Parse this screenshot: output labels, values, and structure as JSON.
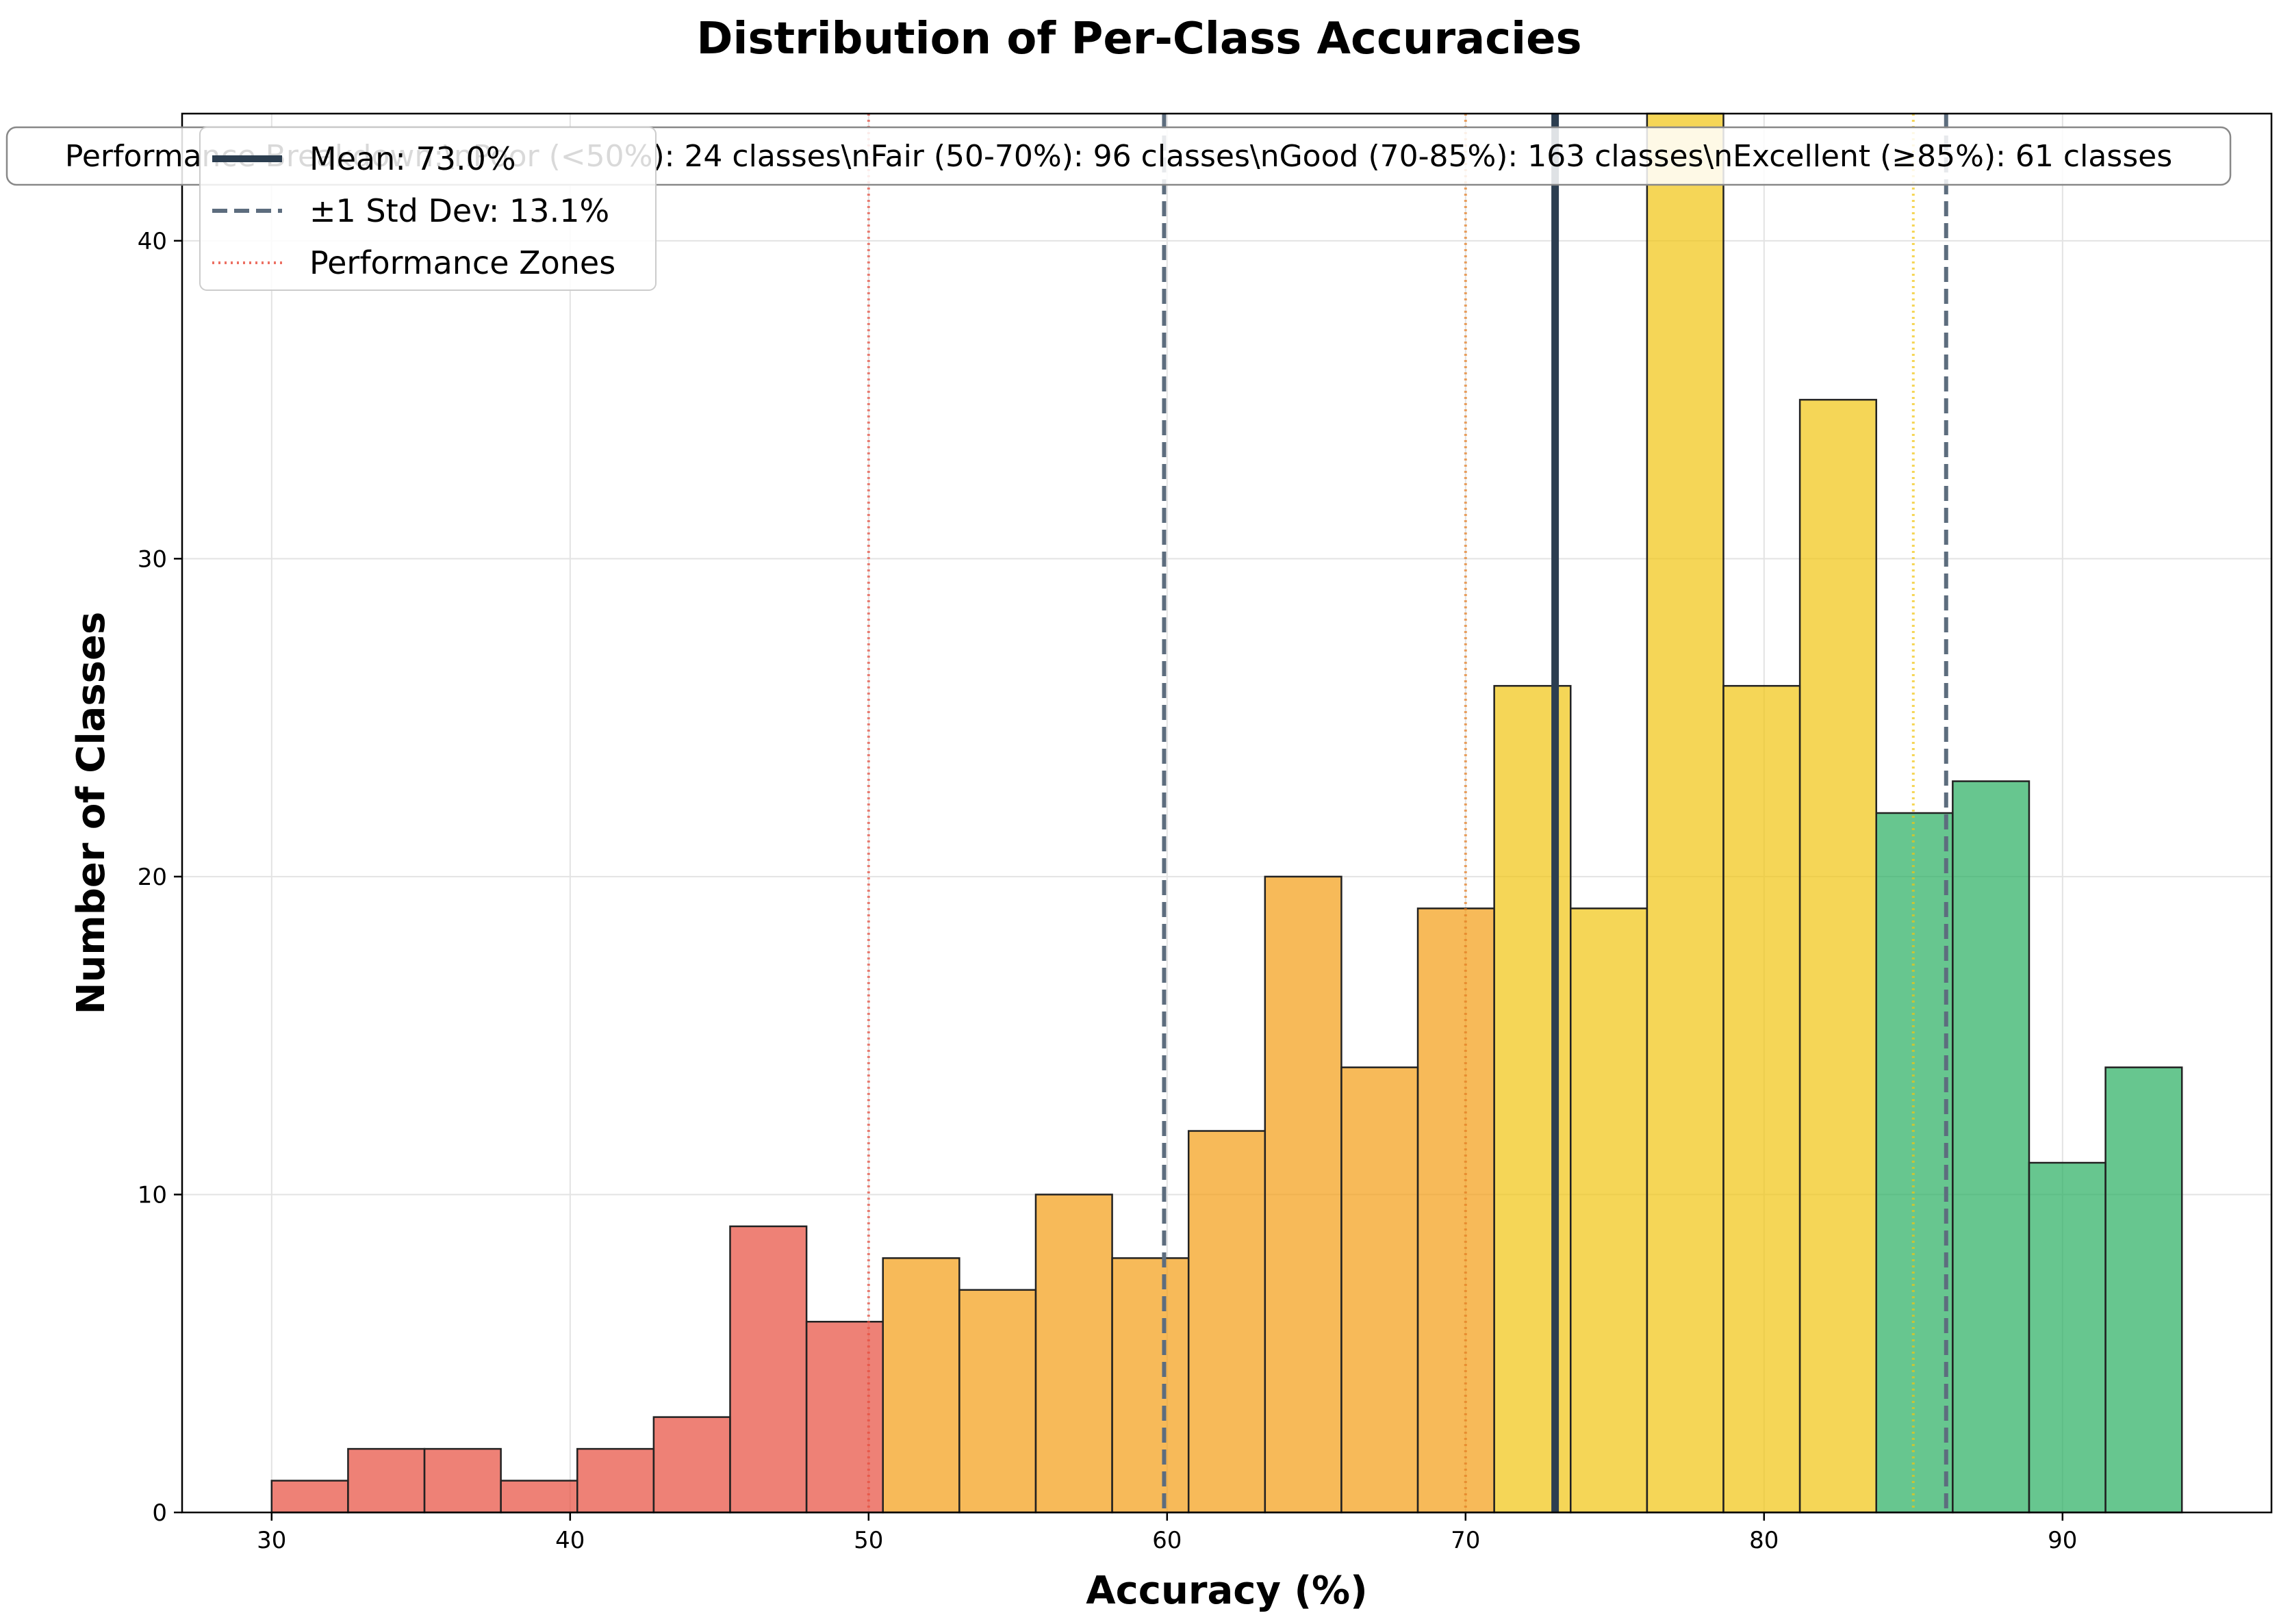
{
  "chart_data": {
    "type": "bar",
    "title": "Distribution of Per-Class Accuracies",
    "xlabel": "Accuracy (%)",
    "ylabel": "Number of Classes",
    "xlim": [
      27,
      97
    ],
    "ylim": [
      0,
      44
    ],
    "x_ticks": [
      30,
      40,
      50,
      60,
      70,
      80,
      90
    ],
    "y_ticks": [
      0,
      10,
      20,
      30,
      40
    ],
    "grid": true,
    "bin_width": 2.56,
    "bins": [
      {
        "start": 30.0,
        "count": 1,
        "zone": "poor"
      },
      {
        "start": 32.56,
        "count": 2,
        "zone": "poor"
      },
      {
        "start": 35.12,
        "count": 2,
        "zone": "poor"
      },
      {
        "start": 37.68,
        "count": 1,
        "zone": "poor"
      },
      {
        "start": 40.24,
        "count": 2,
        "zone": "poor"
      },
      {
        "start": 42.8,
        "count": 3,
        "zone": "poor"
      },
      {
        "start": 45.36,
        "count": 9,
        "zone": "poor"
      },
      {
        "start": 47.92,
        "count": 6,
        "zone": "poor"
      },
      {
        "start": 50.48,
        "count": 8,
        "zone": "fair"
      },
      {
        "start": 53.04,
        "count": 7,
        "zone": "fair"
      },
      {
        "start": 55.6,
        "count": 10,
        "zone": "fair"
      },
      {
        "start": 58.16,
        "count": 8,
        "zone": "fair"
      },
      {
        "start": 60.72,
        "count": 12,
        "zone": "fair"
      },
      {
        "start": 63.28,
        "count": 20,
        "zone": "fair"
      },
      {
        "start": 65.84,
        "count": 14,
        "zone": "fair"
      },
      {
        "start": 68.4,
        "count": 19,
        "zone": "fair"
      },
      {
        "start": 70.96,
        "count": 26,
        "zone": "good"
      },
      {
        "start": 73.52,
        "count": 19,
        "zone": "good"
      },
      {
        "start": 76.08,
        "count": 44,
        "zone": "good"
      },
      {
        "start": 78.64,
        "count": 26,
        "zone": "good"
      },
      {
        "start": 81.2,
        "count": 35,
        "zone": "good"
      },
      {
        "start": 83.76,
        "count": 22,
        "zone": "excellent"
      },
      {
        "start": 86.32,
        "count": 23,
        "zone": "excellent"
      },
      {
        "start": 88.88,
        "count": 11,
        "zone": "excellent"
      },
      {
        "start": 91.44,
        "count": 14,
        "zone": "excellent"
      }
    ],
    "zone_colors": {
      "poor": "#e74c3c",
      "fair": "#f39c12",
      "good": "#f1c40f",
      "excellent": "#27ae60"
    },
    "mean": 73.0,
    "std": 13.1,
    "std_lines": [
      59.9,
      86.1
    ],
    "zone_lines": [
      {
        "x": 50,
        "color": "#e74c3c"
      },
      {
        "x": 70,
        "color": "#e67e22"
      },
      {
        "x": 85,
        "color": "#f1c40f"
      }
    ],
    "legend": {
      "position": "upper-left",
      "entries": [
        {
          "label": "Mean: 73.0%",
          "style": "solid",
          "color": "#2c3e50"
        },
        {
          "label": "±1 Std Dev: 13.1%",
          "style": "dashed",
          "color": "#5d6d7e"
        },
        {
          "label": "Performance Zones",
          "style": "dotted",
          "color": "#e74c3c"
        }
      ]
    },
    "breakdown_text": "Performance Breakdown:\\nPoor (<50%): 24 classes\\nFair (50-70%): 96 classes\\nGood (70-85%): 163 classes\\nExcellent (≥85%): 61 classes"
  }
}
